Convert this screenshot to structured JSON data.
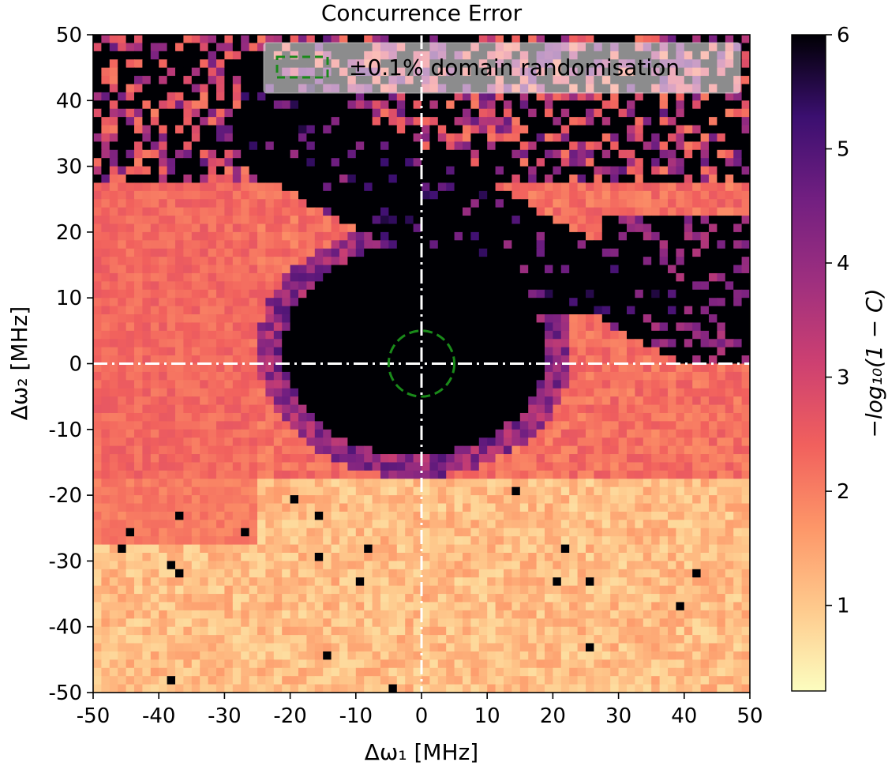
{
  "chart_data": {
    "type": "heatmap",
    "title": "Concurrence Error",
    "xlabel": "Δω₁ [MHz]",
    "ylabel": "Δω₂ [MHz]",
    "colorbar_label": "−log₁₀(1 − C)",
    "xlim": [
      -50,
      50
    ],
    "ylim": [
      -50,
      50
    ],
    "xticks": [
      -50,
      -40,
      -30,
      -20,
      -10,
      0,
      10,
      20,
      30,
      40,
      50
    ],
    "xtick_labels": [
      "-50",
      "-40",
      "-30",
      "-20",
      "-10",
      "0",
      "10",
      "20",
      "30",
      "40",
      "50"
    ],
    "yticks": [
      50,
      40,
      30,
      20,
      10,
      0,
      -10,
      -20,
      -30,
      -40,
      -50
    ],
    "ytick_labels": [
      "50",
      "40",
      "30",
      "20",
      "10",
      "0",
      "-10",
      "-20",
      "-30",
      "-40",
      "-50"
    ],
    "clim": [
      0.25,
      6
    ],
    "cticks": [
      1,
      2,
      3,
      4,
      5,
      6
    ],
    "ctick_labels": [
      "1",
      "2",
      "3",
      "4",
      "5",
      "6"
    ],
    "colormap": "magma_r",
    "legend": {
      "label": "±0.1% domain randomisation",
      "placement": "top-right"
    },
    "regions": {
      "high_fidelity_core": {
        "cx": -1,
        "cy": 2,
        "rx": 20,
        "ry": 16,
        "value": 6
      },
      "high_fidelity_band": "diagonal from upper-left (-30, 45) to lower-right (45, 5), value 6",
      "low_fidelity_lower": "lower half below Δω₂ ≈ -17, value ≈ 0.6–1.6",
      "medium_left": "left band Δω₁ < -25, value ≈ 2.0–2.6"
    },
    "annotations": [
      {
        "type": "vertical-line",
        "x": 0,
        "style": "dash-dot",
        "color": "#ffffff"
      },
      {
        "type": "horizontal-line",
        "y": 0,
        "style": "dash-dot",
        "color": "#ffffff"
      },
      {
        "type": "circle",
        "cx": 0,
        "cy": 0,
        "r": 5,
        "style": "dashed",
        "color": "#1a8a1a"
      }
    ]
  }
}
